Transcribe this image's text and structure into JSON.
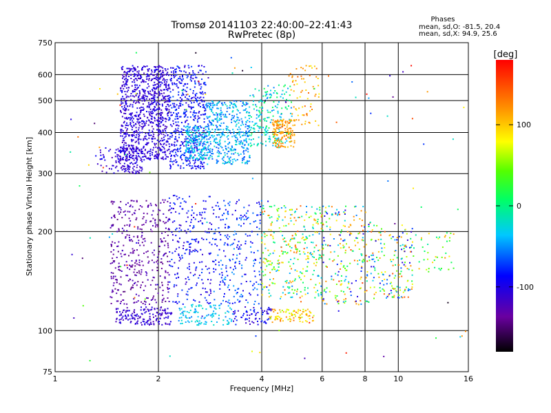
{
  "chart_data": {
    "type": "scatter",
    "title": "Tromsø 20141103 22:40:00–22:41:43",
    "subtitle": "RwPretec (8p)",
    "xlabel": "Frequency [MHz]",
    "ylabel": "Stationary phase Virtual Height [km]",
    "x_scale": "log",
    "y_scale": "log",
    "xlim": [
      1,
      16
    ],
    "ylim": [
      75,
      750
    ],
    "x_ticks": [
      1,
      2,
      4,
      6,
      8,
      10,
      16
    ],
    "y_ticks": [
      75,
      100,
      200,
      300,
      400,
      500,
      600,
      750
    ],
    "grid": true,
    "stats": {
      "heading": "Phases",
      "line_o": "mean, sd,O: -81.5, 20.4",
      "line_x": "mean, sd,X:  94.9, 25.6"
    },
    "colorbar": {
      "label": "[deg]",
      "range": [
        -180,
        180
      ],
      "ticks": [
        100,
        0,
        -100
      ]
    },
    "clusters": [
      {
        "x": [
          1.55,
          2.15
        ],
        "y": [
          330,
          640
        ],
        "phase": [
          -125,
          -95
        ],
        "n": 900
      },
      {
        "x": [
          1.5,
          1.8
        ],
        "y": [
          300,
          360
        ],
        "phase": [
          -125,
          -100
        ],
        "n": 120
      },
      {
        "x": [
          2.15,
          2.75
        ],
        "y": [
          310,
          640
        ],
        "phase": [
          -115,
          -70
        ],
        "n": 500
      },
      {
        "x": [
          2.4,
          2.75
        ],
        "y": [
          330,
          420
        ],
        "phase": [
          -60,
          -20
        ],
        "n": 160
      },
      {
        "x": [
          2.75,
          3.7
        ],
        "y": [
          320,
          500
        ],
        "phase": [
          -75,
          -20
        ],
        "n": 450
      },
      {
        "x": [
          3.7,
          4.9
        ],
        "y": [
          360,
          560
        ],
        "phase": [
          -60,
          20
        ],
        "n": 200
      },
      {
        "x": [
          4.3,
          5.0
        ],
        "y": [
          360,
          440
        ],
        "phase": [
          100,
          140
        ],
        "n": 150
      },
      {
        "x": [
          4.8,
          5.9
        ],
        "y": [
          420,
          640
        ],
        "phase": [
          80,
          140
        ],
        "n": 70
      },
      {
        "x": [
          1.3,
          1.6
        ],
        "y": [
          300,
          360
        ],
        "phase": [
          -130,
          -90
        ],
        "n": 40
      },
      {
        "x": [
          1.45,
          2.15
        ],
        "y": [
          120,
          250
        ],
        "phase": [
          -150,
          -120
        ],
        "n": 380
      },
      {
        "x": [
          1.5,
          2.2
        ],
        "y": [
          104,
          118
        ],
        "phase": [
          -130,
          -100
        ],
        "n": 160
      },
      {
        "x": [
          2.15,
          2.9
        ],
        "y": [
          120,
          260
        ],
        "phase": [
          -120,
          -70
        ],
        "n": 230
      },
      {
        "x": [
          2.3,
          3.3
        ],
        "y": [
          104,
          120
        ],
        "phase": [
          -60,
          -20
        ],
        "n": 110
      },
      {
        "x": [
          2.9,
          4.0
        ],
        "y": [
          120,
          250
        ],
        "phase": [
          -110,
          -50
        ],
        "n": 240
      },
      {
        "x": [
          3.3,
          4.3
        ],
        "y": [
          104,
          118
        ],
        "phase": [
          -120,
          -70
        ],
        "n": 70
      },
      {
        "x": [
          4.0,
          6.0
        ],
        "y": [
          125,
          240
        ],
        "phase": [
          -60,
          150
        ],
        "n": 330
      },
      {
        "x": [
          4.2,
          5.7
        ],
        "y": [
          106,
          116
        ],
        "phase": [
          60,
          140
        ],
        "n": 90
      },
      {
        "x": [
          6.0,
          8.3
        ],
        "y": [
          120,
          240
        ],
        "phase": [
          -110,
          160
        ],
        "n": 220
      },
      {
        "x": [
          8.3,
          11.0
        ],
        "y": [
          125,
          210
        ],
        "phase": [
          -120,
          150
        ],
        "n": 170
      },
      {
        "x": [
          11.0,
          14.5
        ],
        "y": [
          150,
          200
        ],
        "phase": [
          -20,
          140
        ],
        "n": 45
      },
      {
        "x": [
          1.1,
          16.0
        ],
        "y": [
          78,
          700
        ],
        "phase": [
          -180,
          180
        ],
        "n": 110
      }
    ]
  }
}
